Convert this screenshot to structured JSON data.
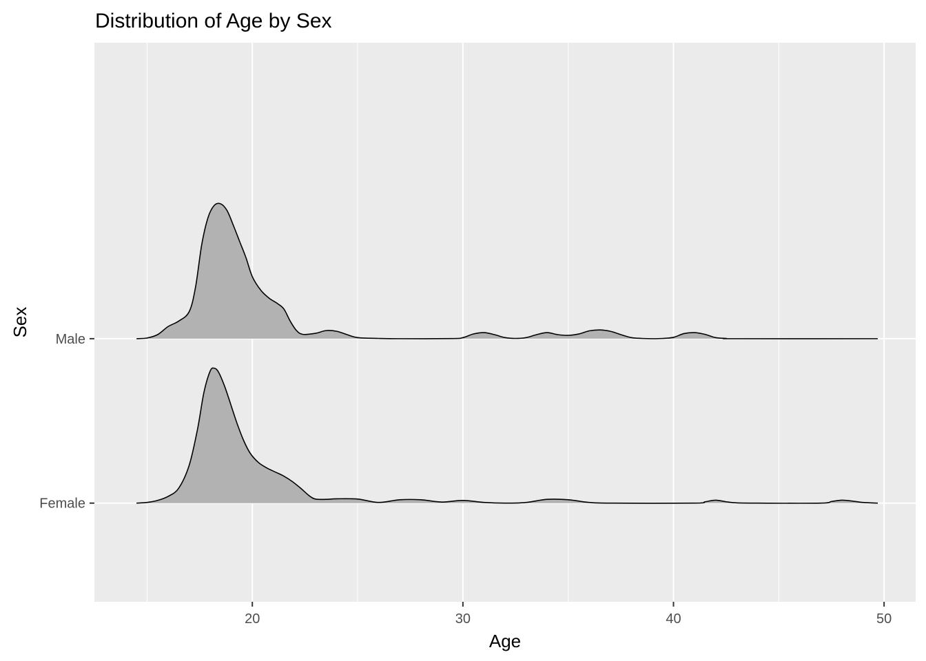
{
  "chart_data": {
    "type": "ridgeline-density",
    "title": "Distribution of Age by Sex",
    "xlabel": "Age",
    "ylabel": "Sex",
    "xlim": [
      12.5,
      51.5
    ],
    "x_ticks": [
      20,
      30,
      40,
      50
    ],
    "x_minor_ticks": [
      15,
      25,
      35,
      45
    ],
    "categories": [
      "Female",
      "Male"
    ],
    "grid": true,
    "colors": {
      "panel": "#ebebeb",
      "grid": "#ffffff",
      "fill": "#b2b2b2",
      "line": "#000000",
      "tick_label": "#4d4d4d"
    },
    "series": [
      {
        "name": "Male",
        "points": [
          [
            14.5,
            0.0
          ],
          [
            15.0,
            0.005
          ],
          [
            15.5,
            0.03
          ],
          [
            16.0,
            0.09
          ],
          [
            16.5,
            0.13
          ],
          [
            17.0,
            0.2
          ],
          [
            17.3,
            0.38
          ],
          [
            17.6,
            0.7
          ],
          [
            17.9,
            0.9
          ],
          [
            18.2,
            0.99
          ],
          [
            18.5,
            1.0
          ],
          [
            18.8,
            0.95
          ],
          [
            19.1,
            0.84
          ],
          [
            19.4,
            0.72
          ],
          [
            19.7,
            0.6
          ],
          [
            20.0,
            0.46
          ],
          [
            20.4,
            0.36
          ],
          [
            20.8,
            0.3
          ],
          [
            21.2,
            0.26
          ],
          [
            21.5,
            0.22
          ],
          [
            21.8,
            0.13
          ],
          [
            22.1,
            0.06
          ],
          [
            22.4,
            0.032
          ],
          [
            23.0,
            0.04
          ],
          [
            23.5,
            0.06
          ],
          [
            24.0,
            0.055
          ],
          [
            24.5,
            0.03
          ],
          [
            25.0,
            0.008
          ],
          [
            26.0,
            0.002
          ],
          [
            27.0,
            0.0
          ],
          [
            29.5,
            0.001
          ],
          [
            30.0,
            0.008
          ],
          [
            30.5,
            0.035
          ],
          [
            31.0,
            0.045
          ],
          [
            31.5,
            0.03
          ],
          [
            32.0,
            0.008
          ],
          [
            32.5,
            0.002
          ],
          [
            33.0,
            0.008
          ],
          [
            33.5,
            0.03
          ],
          [
            34.0,
            0.045
          ],
          [
            34.5,
            0.03
          ],
          [
            35.0,
            0.025
          ],
          [
            35.5,
            0.035
          ],
          [
            36.0,
            0.058
          ],
          [
            36.5,
            0.065
          ],
          [
            37.0,
            0.055
          ],
          [
            37.5,
            0.03
          ],
          [
            38.0,
            0.008
          ],
          [
            38.5,
            0.002
          ],
          [
            39.0,
            0.0
          ],
          [
            39.5,
            0.002
          ],
          [
            40.0,
            0.01
          ],
          [
            40.5,
            0.038
          ],
          [
            41.0,
            0.045
          ],
          [
            41.5,
            0.032
          ],
          [
            42.0,
            0.008
          ],
          [
            42.5,
            0.002
          ],
          [
            43.0,
            0.0
          ],
          [
            49.7,
            0.0
          ]
        ]
      },
      {
        "name": "Female",
        "points": [
          [
            14.5,
            0.0
          ],
          [
            15.0,
            0.005
          ],
          [
            15.5,
            0.02
          ],
          [
            16.0,
            0.05
          ],
          [
            16.5,
            0.11
          ],
          [
            17.0,
            0.28
          ],
          [
            17.4,
            0.55
          ],
          [
            17.7,
            0.82
          ],
          [
            18.0,
            0.98
          ],
          [
            18.2,
            1.0
          ],
          [
            18.4,
            0.97
          ],
          [
            18.7,
            0.86
          ],
          [
            19.0,
            0.72
          ],
          [
            19.3,
            0.58
          ],
          [
            19.6,
            0.46
          ],
          [
            19.9,
            0.37
          ],
          [
            20.3,
            0.3
          ],
          [
            20.7,
            0.26
          ],
          [
            21.1,
            0.23
          ],
          [
            21.5,
            0.2
          ],
          [
            21.9,
            0.16
          ],
          [
            22.3,
            0.11
          ],
          [
            22.7,
            0.055
          ],
          [
            23.0,
            0.03
          ],
          [
            23.5,
            0.028
          ],
          [
            24.0,
            0.032
          ],
          [
            25.0,
            0.03
          ],
          [
            26.0,
            0.005
          ],
          [
            27.0,
            0.025
          ],
          [
            28.0,
            0.025
          ],
          [
            29.0,
            0.008
          ],
          [
            30.0,
            0.02
          ],
          [
            31.0,
            0.005
          ],
          [
            32.0,
            0.0
          ],
          [
            33.0,
            0.005
          ],
          [
            34.0,
            0.028
          ],
          [
            35.0,
            0.025
          ],
          [
            36.0,
            0.005
          ],
          [
            37.0,
            0.0
          ],
          [
            41.0,
            0.0
          ],
          [
            41.5,
            0.01
          ],
          [
            42.0,
            0.022
          ],
          [
            42.5,
            0.01
          ],
          [
            43.0,
            0.002
          ],
          [
            44.0,
            0.0
          ],
          [
            47.0,
            0.0
          ],
          [
            47.5,
            0.012
          ],
          [
            48.0,
            0.022
          ],
          [
            48.5,
            0.015
          ],
          [
            49.0,
            0.005
          ],
          [
            49.7,
            0.0
          ]
        ]
      }
    ]
  }
}
